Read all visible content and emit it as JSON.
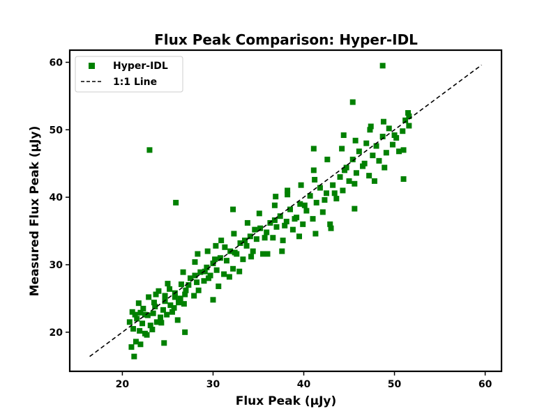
{
  "chart_data": {
    "type": "scatter",
    "title": "Flux Peak Comparison: Hyper-IDL",
    "xlabel": "Flux Peak (μJy)",
    "ylabel": "Measured Flux Peak (μJy)",
    "xlim": [
      14.2,
      61.8
    ],
    "ylim": [
      14.2,
      61.8
    ],
    "xticks": [
      20,
      30,
      40,
      50,
      60
    ],
    "yticks": [
      20,
      30,
      40,
      50,
      60
    ],
    "grid": false,
    "legend_position": "top-left",
    "colors": {
      "points": "#008000",
      "reference": "#000000"
    },
    "series": [
      {
        "name": "Hyper-IDL",
        "type": "scatter",
        "marker": "square",
        "points": [
          [
            21.0,
            17.8
          ],
          [
            21.3,
            16.4
          ],
          [
            21.5,
            18.6
          ],
          [
            22.0,
            18.2
          ],
          [
            24.6,
            18.4
          ],
          [
            26.9,
            20.0
          ],
          [
            20.8,
            21.5
          ],
          [
            21.2,
            20.5
          ],
          [
            21.6,
            22.0
          ],
          [
            21.9,
            20.2
          ],
          [
            22.2,
            21.3
          ],
          [
            22.5,
            19.8
          ],
          [
            22.8,
            22.5
          ],
          [
            23.1,
            21.0
          ],
          [
            23.4,
            22.8
          ],
          [
            23.8,
            21.5
          ],
          [
            24.2,
            22.2
          ],
          [
            24.5,
            23.3
          ],
          [
            24.9,
            22.6
          ],
          [
            25.3,
            24.0
          ],
          [
            25.7,
            23.6
          ],
          [
            26.1,
            21.8
          ],
          [
            26.4,
            25.0
          ],
          [
            26.8,
            24.2
          ],
          [
            21.1,
            23.0
          ],
          [
            21.8,
            24.3
          ],
          [
            22.3,
            23.5
          ],
          [
            22.9,
            25.2
          ],
          [
            23.5,
            24.4
          ],
          [
            24.0,
            26.1
          ],
          [
            24.7,
            25.4
          ],
          [
            25.2,
            26.4
          ],
          [
            25.8,
            25.8
          ],
          [
            26.5,
            27.1
          ],
          [
            27.0,
            26.2
          ],
          [
            27.5,
            28.0
          ],
          [
            27.9,
            25.4
          ],
          [
            28.2,
            27.4
          ],
          [
            28.6,
            28.9
          ],
          [
            29.0,
            27.6
          ],
          [
            29.3,
            29.6
          ],
          [
            29.7,
            28.4
          ],
          [
            30.0,
            30.2
          ],
          [
            30.4,
            29.2
          ],
          [
            30.8,
            31.0
          ],
          [
            31.2,
            28.6
          ],
          [
            31.5,
            30.6
          ],
          [
            31.9,
            32.0
          ],
          [
            32.2,
            29.4
          ],
          [
            32.6,
            31.6
          ],
          [
            33.0,
            33.2
          ],
          [
            33.3,
            30.8
          ],
          [
            33.7,
            32.8
          ],
          [
            34.1,
            34.2
          ],
          [
            34.4,
            32.0
          ],
          [
            34.8,
            33.8
          ],
          [
            35.2,
            35.4
          ],
          [
            35.5,
            31.6
          ],
          [
            35.9,
            34.8
          ],
          [
            36.3,
            36.2
          ],
          [
            36.6,
            34.0
          ],
          [
            37.0,
            35.6
          ],
          [
            37.4,
            37.2
          ],
          [
            37.7,
            33.6
          ],
          [
            38.1,
            36.4
          ],
          [
            38.5,
            38.2
          ],
          [
            38.8,
            35.2
          ],
          [
            39.2,
            37.0
          ],
          [
            39.6,
            39.0
          ],
          [
            39.9,
            36.0
          ],
          [
            40.3,
            38.0
          ],
          [
            40.7,
            40.2
          ],
          [
            41.0,
            36.8
          ],
          [
            41.4,
            39.2
          ],
          [
            41.8,
            41.4
          ],
          [
            42.1,
            37.8
          ],
          [
            42.5,
            40.6
          ],
          [
            42.9,
            36.0
          ],
          [
            43.2,
            41.8
          ],
          [
            43.6,
            39.8
          ],
          [
            44.0,
            43.0
          ],
          [
            44.3,
            41.0
          ],
          [
            44.7,
            44.4
          ],
          [
            45.0,
            42.4
          ],
          [
            45.4,
            45.6
          ],
          [
            45.8,
            43.6
          ],
          [
            46.1,
            46.8
          ],
          [
            46.5,
            44.6
          ],
          [
            46.9,
            48.0
          ],
          [
            47.2,
            43.2
          ],
          [
            47.6,
            46.2
          ],
          [
            48.0,
            47.6
          ],
          [
            48.3,
            45.4
          ],
          [
            48.7,
            49.0
          ],
          [
            49.1,
            46.6
          ],
          [
            49.4,
            50.2
          ],
          [
            49.8,
            47.8
          ],
          [
            50.2,
            48.8
          ],
          [
            50.5,
            46.8
          ],
          [
            50.9,
            49.8
          ],
          [
            51.2,
            51.4
          ],
          [
            51.6,
            50.6
          ],
          [
            51.5,
            52.5
          ],
          [
            51.0,
            47.0
          ],
          [
            50.0,
            49.2
          ],
          [
            48.9,
            44.4
          ],
          [
            47.8,
            42.4
          ],
          [
            46.7,
            45.0
          ],
          [
            45.6,
            42.0
          ],
          [
            44.5,
            44.0
          ],
          [
            43.4,
            40.6
          ],
          [
            42.3,
            39.6
          ],
          [
            41.2,
            42.6
          ],
          [
            40.1,
            38.8
          ],
          [
            39.0,
            36.8
          ],
          [
            37.9,
            35.8
          ],
          [
            36.8,
            36.6
          ],
          [
            35.7,
            34.0
          ],
          [
            34.6,
            35.2
          ],
          [
            33.5,
            33.6
          ],
          [
            32.4,
            31.8
          ],
          [
            31.3,
            32.6
          ],
          [
            30.2,
            30.8
          ],
          [
            29.1,
            29.0
          ],
          [
            28.0,
            28.4
          ],
          [
            26.9,
            25.6
          ],
          [
            25.8,
            25.2
          ],
          [
            24.7,
            24.6
          ],
          [
            23.6,
            23.8
          ],
          [
            22.5,
            22.6
          ],
          [
            21.4,
            22.6
          ],
          [
            43.0,
            35.4
          ],
          [
            41.3,
            34.6
          ],
          [
            39.5,
            34.2
          ],
          [
            37.6,
            32.0
          ],
          [
            36.0,
            31.6
          ],
          [
            34.2,
            31.2
          ],
          [
            32.9,
            29.0
          ],
          [
            31.8,
            28.2
          ],
          [
            30.6,
            26.8
          ],
          [
            30.0,
            24.8
          ],
          [
            29.5,
            28.0
          ],
          [
            28.4,
            26.2
          ],
          [
            27.3,
            27.0
          ],
          [
            26.2,
            24.4
          ],
          [
            25.5,
            23.0
          ],
          [
            24.3,
            21.4
          ],
          [
            23.3,
            20.4
          ],
          [
            22.7,
            19.6
          ],
          [
            22.0,
            22.9
          ],
          [
            23.7,
            25.6
          ],
          [
            25.0,
            27.2
          ],
          [
            26.7,
            28.9
          ],
          [
            28.0,
            30.4
          ],
          [
            29.4,
            32.0
          ],
          [
            30.9,
            33.6
          ],
          [
            32.3,
            34.6
          ],
          [
            33.8,
            36.2
          ],
          [
            35.1,
            37.6
          ],
          [
            36.8,
            38.8
          ],
          [
            38.2,
            40.4
          ],
          [
            39.7,
            41.8
          ],
          [
            41.1,
            44.0
          ],
          [
            42.6,
            45.6
          ],
          [
            44.2,
            47.2
          ],
          [
            45.7,
            48.4
          ],
          [
            47.3,
            50.0
          ],
          [
            48.8,
            51.2
          ],
          [
            45.4,
            54.1
          ],
          [
            44.4,
            49.2
          ],
          [
            47.4,
            50.5
          ],
          [
            51.6,
            52.0
          ],
          [
            45.6,
            38.3
          ],
          [
            41.1,
            47.2
          ],
          [
            32.2,
            38.2
          ],
          [
            30.3,
            32.8
          ],
          [
            28.3,
            31.6
          ],
          [
            36.9,
            40.1
          ],
          [
            38.2,
            41.0
          ],
          [
            51.0,
            42.7
          ],
          [
            23.0,
            47.0
          ],
          [
            25.9,
            39.2
          ],
          [
            48.7,
            59.5
          ]
        ]
      },
      {
        "name": "1:1 Line",
        "type": "line",
        "style": "dashed",
        "x": [
          16.4,
          59.6
        ],
        "y": [
          16.4,
          59.6
        ]
      }
    ]
  }
}
